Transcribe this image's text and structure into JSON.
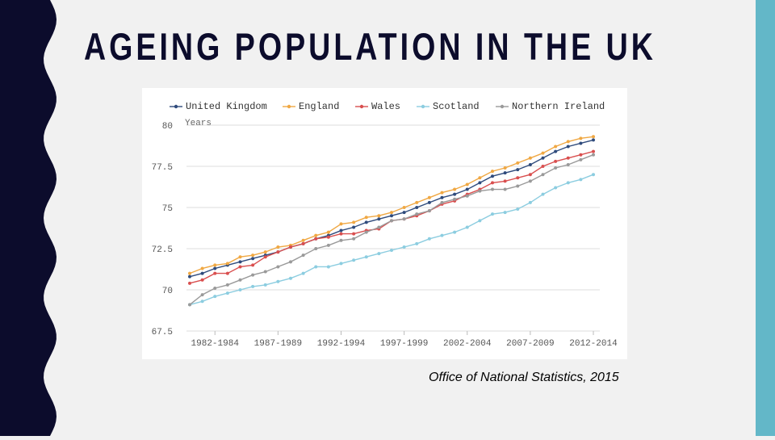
{
  "slide": {
    "title": "AGEING POPULATION IN THE UK",
    "source_prefix": "Office of National Statistics",
    "source_suffix": ", 2015",
    "colors": {
      "background": "#f1f1f1",
      "left_band": "#0c0c2c",
      "right_band": "#63b7c8",
      "title": "#0c0c2c"
    }
  },
  "chart_data": {
    "type": "line",
    "title": "",
    "xlabel": "",
    "ylabel": "Years",
    "ylim": [
      67.5,
      80
    ],
    "yticks": [
      67.5,
      70,
      72.5,
      75,
      77.5,
      80
    ],
    "ytick_labels": [
      "67.5",
      "70",
      "72.5",
      "75",
      "77.5",
      "80"
    ],
    "grid": true,
    "legend_position": "top",
    "categories": [
      "1980-1982",
      "1981-1983",
      "1982-1984",
      "1983-1985",
      "1984-1986",
      "1985-1987",
      "1986-1988",
      "1987-1989",
      "1988-1990",
      "1989-1991",
      "1990-1992",
      "1991-1993",
      "1992-1994",
      "1993-1995",
      "1994-1996",
      "1995-1997",
      "1996-1998",
      "1997-1999",
      "1998-2000",
      "1999-2001",
      "2000-2002",
      "2001-2003",
      "2002-2004",
      "2003-2005",
      "2004-2006",
      "2005-2007",
      "2006-2008",
      "2007-2009",
      "2008-2010",
      "2009-2011",
      "2010-2012",
      "2011-2013",
      "2012-2014"
    ],
    "xtick_labels": [
      "1982-1984",
      "1987-1989",
      "1992-1994",
      "1997-1999",
      "2002-2004",
      "2007-2009",
      "2012-2014"
    ],
    "series": [
      {
        "name": "United Kingdom",
        "color": "#2f4b7c",
        "values": [
          70.8,
          71.0,
          71.3,
          71.5,
          71.7,
          71.9,
          72.1,
          72.3,
          72.6,
          72.8,
          73.1,
          73.3,
          73.6,
          73.8,
          74.1,
          74.3,
          74.5,
          74.7,
          75.0,
          75.3,
          75.6,
          75.8,
          76.1,
          76.5,
          76.9,
          77.1,
          77.3,
          77.6,
          78.0,
          78.4,
          78.7,
          78.9,
          79.1
        ]
      },
      {
        "name": "England",
        "color": "#f0a843",
        "values": [
          71.0,
          71.3,
          71.5,
          71.6,
          72.0,
          72.1,
          72.3,
          72.6,
          72.7,
          73.0,
          73.3,
          73.5,
          74.0,
          74.1,
          74.4,
          74.5,
          74.7,
          75.0,
          75.3,
          75.6,
          75.9,
          76.1,
          76.4,
          76.8,
          77.2,
          77.4,
          77.7,
          78.0,
          78.3,
          78.7,
          79.0,
          79.2,
          79.3
        ]
      },
      {
        "name": "Wales",
        "color": "#d94f4f",
        "values": [
          70.4,
          70.6,
          71.0,
          71.0,
          71.4,
          71.5,
          72.0,
          72.3,
          72.6,
          72.8,
          73.1,
          73.2,
          73.4,
          73.4,
          73.6,
          73.7,
          74.2,
          74.3,
          74.5,
          74.8,
          75.2,
          75.4,
          75.8,
          76.1,
          76.5,
          76.6,
          76.8,
          77.0,
          77.5,
          77.8,
          78.0,
          78.2,
          78.4
        ]
      },
      {
        "name": "Scotland",
        "color": "#8ccde0",
        "values": [
          69.1,
          69.3,
          69.6,
          69.8,
          70.0,
          70.2,
          70.3,
          70.5,
          70.7,
          71.0,
          71.4,
          71.4,
          71.6,
          71.8,
          72.0,
          72.2,
          72.4,
          72.6,
          72.8,
          73.1,
          73.3,
          73.5,
          73.8,
          74.2,
          74.6,
          74.7,
          74.9,
          75.3,
          75.8,
          76.2,
          76.5,
          76.7,
          77.0
        ]
      },
      {
        "name": "Northern Ireland",
        "color": "#9a9a9a",
        "values": [
          69.1,
          69.7,
          70.1,
          70.3,
          70.6,
          70.9,
          71.1,
          71.4,
          71.7,
          72.1,
          72.5,
          72.7,
          73.0,
          73.1,
          73.5,
          73.8,
          74.2,
          74.3,
          74.6,
          74.8,
          75.3,
          75.5,
          75.7,
          76.0,
          76.1,
          76.1,
          76.3,
          76.6,
          77.0,
          77.4,
          77.6,
          77.9,
          78.2
        ]
      }
    ]
  }
}
